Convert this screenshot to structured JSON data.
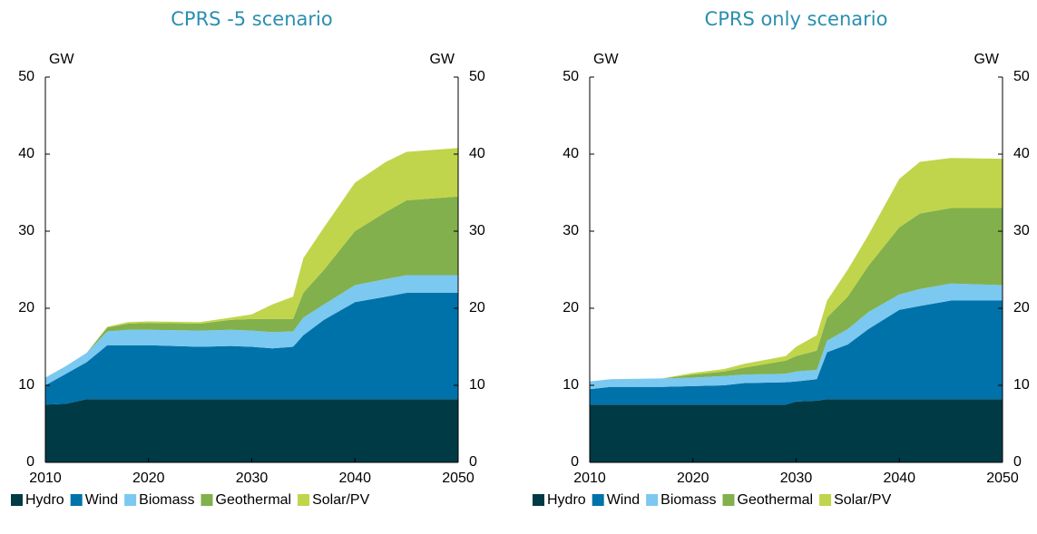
{
  "chart_data": [
    {
      "type": "area",
      "title": "CPRS -5 scenario",
      "y_unit_label": "GW",
      "x": [
        2010,
        2012,
        2014,
        2016,
        2018,
        2020,
        2025,
        2028,
        2030,
        2032,
        2034,
        2035,
        2037,
        2040,
        2043,
        2045,
        2050
      ],
      "series": [
        {
          "name": "Hydro",
          "color": "#003a45",
          "values": [
            7.5,
            7.6,
            8.2,
            8.2,
            8.2,
            8.2,
            8.2,
            8.2,
            8.2,
            8.2,
            8.2,
            8.2,
            8.2,
            8.2,
            8.2,
            8.2,
            8.2
          ]
        },
        {
          "name": "Wind",
          "color": "#0072aa",
          "values": [
            2.5,
            3.9,
            4.8,
            7.0,
            7.0,
            7.0,
            6.8,
            6.9,
            6.8,
            6.6,
            6.8,
            8.3,
            10.3,
            12.6,
            13.3,
            13.8,
            13.8
          ]
        },
        {
          "name": "Biomass",
          "color": "#7bc8f0",
          "values": [
            1.0,
            1.0,
            1.2,
            1.8,
            2.0,
            2.0,
            2.1,
            2.1,
            2.1,
            2.1,
            2.0,
            2.3,
            2.0,
            2.2,
            2.3,
            2.3,
            2.3
          ]
        },
        {
          "name": "Geothermal",
          "color": "#82b04c",
          "values": [
            0,
            0,
            0,
            0.5,
            0.8,
            0.9,
            0.9,
            1.3,
            1.5,
            1.7,
            1.6,
            3.2,
            4.5,
            7.0,
            8.7,
            9.7,
            10.2
          ]
        },
        {
          "name": "Solar/PV",
          "color": "#c0d54b",
          "values": [
            0,
            0,
            0,
            0.1,
            0.2,
            0.2,
            0.2,
            0.3,
            0.6,
            1.9,
            2.9,
            4.5,
            5.5,
            6.3,
            6.5,
            6.3,
            6.3
          ]
        }
      ],
      "xlim": [
        2010,
        2050
      ],
      "xticks": [
        2010,
        2020,
        2030,
        2040,
        2050
      ],
      "ylim": [
        0,
        50
      ],
      "yticks": [
        0,
        10,
        20,
        30,
        40,
        50
      ],
      "legend": "bottom"
    },
    {
      "type": "area",
      "title": "CPRS only scenario",
      "y_unit_label": "GW",
      "x": [
        2010,
        2012,
        2017,
        2020,
        2023,
        2025,
        2029,
        2030,
        2032,
        2033,
        2035,
        2037,
        2040,
        2042,
        2045,
        2050
      ],
      "series": [
        {
          "name": "Hydro",
          "color": "#003a45",
          "values": [
            7.5,
            7.5,
            7.5,
            7.5,
            7.5,
            7.5,
            7.5,
            7.9,
            8.0,
            8.2,
            8.2,
            8.2,
            8.2,
            8.2,
            8.2,
            8.2
          ]
        },
        {
          "name": "Wind",
          "color": "#0072aa",
          "values": [
            2.0,
            2.3,
            2.3,
            2.4,
            2.5,
            2.8,
            2.9,
            2.6,
            2.8,
            6.1,
            7.1,
            9.1,
            11.6,
            12.1,
            12.8,
            12.8
          ]
        },
        {
          "name": "Biomass",
          "color": "#7bc8f0",
          "values": [
            1.0,
            1.0,
            1.1,
            1.1,
            1.2,
            1.1,
            1.1,
            1.3,
            1.2,
            1.5,
            2.0,
            2.2,
            2.0,
            2.2,
            2.2,
            2.0
          ]
        },
        {
          "name": "Geothermal",
          "color": "#82b04c",
          "values": [
            0,
            0,
            0,
            0.4,
            0.6,
            0.9,
            1.7,
            2.0,
            2.5,
            3.0,
            4.2,
            6.0,
            8.7,
            9.8,
            9.8,
            10.0
          ]
        },
        {
          "name": "Solar/PV",
          "color": "#c0d54b",
          "values": [
            0,
            0,
            0,
            0.2,
            0.3,
            0.5,
            0.6,
            1.2,
            2.0,
            2.2,
            3.5,
            4.0,
            6.3,
            6.7,
            6.5,
            6.4
          ]
        }
      ],
      "xlim": [
        2010,
        2050
      ],
      "xticks": [
        2010,
        2020,
        2030,
        2040,
        2050
      ],
      "ylim": [
        0,
        50
      ],
      "yticks": [
        0,
        10,
        20,
        30,
        40,
        50
      ],
      "legend": "bottom"
    }
  ]
}
